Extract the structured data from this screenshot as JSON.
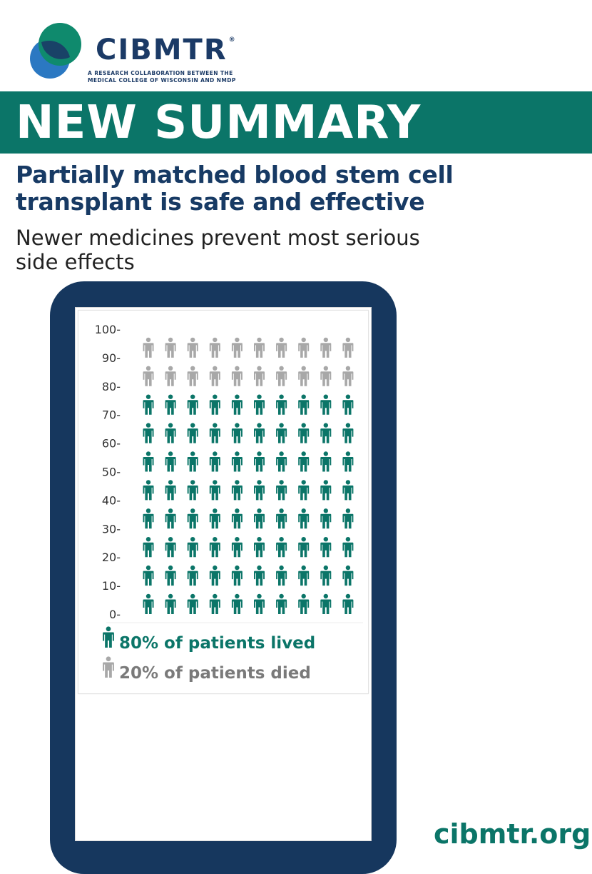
{
  "brand": {
    "name": "CIBMTR",
    "trademark": "®",
    "tagline_line1": "A RESEARCH COLLABORATION BETWEEN THE",
    "tagline_line2": "MEDICAL COLLEGE OF WISCONSIN AND NMDP",
    "colors": {
      "navy": "#1b3a66",
      "teal": "#0b7568",
      "blue": "#2b6fb3",
      "green": "#0f8a6d",
      "gray": "#a8a8a8"
    }
  },
  "banner": {
    "label": "NEW SUMMARY"
  },
  "headline": {
    "line1": "Partially matched blood stem cell",
    "line2": "transplant is safe and effective"
  },
  "subhead": {
    "line1": "Newer medicines prevent most serious",
    "line2": "side effects"
  },
  "chart_data": {
    "type": "pictograph",
    "icon": "person-icon",
    "grid": {
      "rows": 10,
      "columns": 10
    },
    "ylim": [
      0,
      100
    ],
    "y_ticks": [
      "0-",
      "10-",
      "20-",
      "30-",
      "40-",
      "50-",
      "60-",
      "70-",
      "80-",
      "90-",
      "100-"
    ],
    "series": [
      {
        "name": "80% of patients lived",
        "value": 80,
        "color": "#0b7568"
      },
      {
        "name": "20% of patients died",
        "value": 20,
        "color": "#a8a8a8"
      }
    ]
  },
  "footer": {
    "site": "cibmtr.org"
  }
}
